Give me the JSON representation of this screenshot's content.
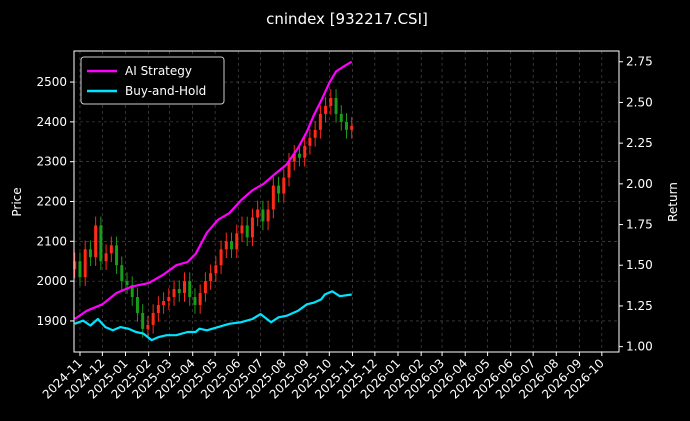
{
  "chart_data": {
    "type": "line",
    "title": "cnindex [932217.CSI]",
    "ylabel_left": "Price",
    "ylabel_right": "Return",
    "grid": true,
    "legend_position": "top-left",
    "colors": {
      "background": "#000000",
      "ai_strategy": "#ff00ff",
      "buy_and_hold": "#00e5ff",
      "candle_up": "#ff2a1a",
      "candle_down": "#1a9c1a",
      "grid": "#555555",
      "text": "#ffffff"
    },
    "x_ticks": [
      "2024-11",
      "2024-12",
      "2025-01",
      "2025-02",
      "2025-03",
      "2025-04",
      "2025-05",
      "2025-06",
      "2025-07",
      "2025-08",
      "2025-09",
      "2025-10",
      "2025-11",
      "2025-12",
      "2026-01",
      "2026-02",
      "2026-03",
      "2026-04",
      "2026-05",
      "2026-06",
      "2026-07",
      "2026-08",
      "2026-09",
      "2026-10"
    ],
    "x_range": [
      "2024-10-24",
      "2026-10-24"
    ],
    "y_left_ticks": [
      1900,
      2000,
      2100,
      2200,
      2300,
      2400,
      2500
    ],
    "y_left_range": [
      1822,
      2578
    ],
    "y_right_ticks": [
      "1.00",
      "1.25",
      "1.50",
      "1.75",
      "2.00",
      "2.25",
      "2.50",
      "2.75"
    ],
    "y_right_range": [
      0.967,
      2.816
    ],
    "price": {
      "name": "Price",
      "x": [
        "2024-10-25",
        "2024-11-01",
        "2024-11-08",
        "2024-11-15",
        "2024-11-22",
        "2024-11-29",
        "2024-12-06",
        "2024-12-13",
        "2024-12-20",
        "2024-12-27",
        "2025-01-03",
        "2025-01-10",
        "2025-01-17",
        "2025-01-24",
        "2025-01-31",
        "2025-02-07",
        "2025-02-14",
        "2025-02-21",
        "2025-02-28",
        "2025-03-07",
        "2025-03-14",
        "2025-03-21",
        "2025-03-28",
        "2025-04-04",
        "2025-04-11",
        "2025-04-18",
        "2025-04-25",
        "2025-05-02",
        "2025-05-09",
        "2025-05-16",
        "2025-05-23",
        "2025-05-30",
        "2025-06-06",
        "2025-06-13",
        "2025-06-20",
        "2025-06-27",
        "2025-07-04",
        "2025-07-11",
        "2025-07-18",
        "2025-07-25",
        "2025-08-01",
        "2025-08-08",
        "2025-08-15",
        "2025-08-22",
        "2025-08-29",
        "2025-09-05",
        "2025-09-12",
        "2025-09-19",
        "2025-09-26",
        "2025-10-03",
        "2025-10-10",
        "2025-10-17",
        "2025-10-24",
        "2025-10-31"
      ],
      "values": [
        2050,
        2010,
        2080,
        2060,
        2140,
        2050,
        2070,
        2090,
        2040,
        2000,
        1990,
        1960,
        1920,
        1880,
        1890,
        1920,
        1940,
        1950,
        1960,
        1980,
        1970,
        2000,
        1960,
        1940,
        1970,
        2000,
        2020,
        2040,
        2080,
        2100,
        2080,
        2120,
        2140,
        2110,
        2160,
        2180,
        2150,
        2180,
        2240,
        2220,
        2260,
        2300,
        2320,
        2310,
        2340,
        2360,
        2380,
        2420,
        2440,
        2460,
        2420,
        2400,
        2380,
        2390
      ]
    },
    "series": [
      {
        "name": "AI Strategy",
        "x": [
          "2024-10-25",
          "2024-11-10",
          "2024-12-01",
          "2024-12-20",
          "2025-01-10",
          "2025-02-01",
          "2025-02-20",
          "2025-03-10",
          "2025-03-25",
          "2025-04-05",
          "2025-04-20",
          "2025-05-05",
          "2025-05-20",
          "2025-06-05",
          "2025-06-20",
          "2025-07-05",
          "2025-07-20",
          "2025-08-05",
          "2025-08-20",
          "2025-09-01",
          "2025-09-10",
          "2025-09-20",
          "2025-10-01",
          "2025-10-10",
          "2025-10-20",
          "2025-10-31"
        ],
        "values": [
          1.17,
          1.22,
          1.26,
          1.33,
          1.37,
          1.39,
          1.44,
          1.5,
          1.52,
          1.57,
          1.7,
          1.78,
          1.82,
          1.9,
          1.96,
          2.0,
          2.06,
          2.12,
          2.22,
          2.32,
          2.42,
          2.51,
          2.62,
          2.69,
          2.72,
          2.75
        ]
      },
      {
        "name": "Buy-and-Hold",
        "x": [
          "2024-10-25",
          "2024-11-05",
          "2024-11-15",
          "2024-11-25",
          "2024-12-05",
          "2024-12-15",
          "2024-12-25",
          "2025-01-05",
          "2025-01-15",
          "2025-01-25",
          "2025-02-05",
          "2025-02-15",
          "2025-02-25",
          "2025-03-10",
          "2025-03-25",
          "2025-04-05",
          "2025-04-10",
          "2025-04-20",
          "2025-05-05",
          "2025-05-20",
          "2025-06-05",
          "2025-06-20",
          "2025-07-01",
          "2025-07-15",
          "2025-07-25",
          "2025-08-05",
          "2025-08-20",
          "2025-09-01",
          "2025-09-10",
          "2025-09-20",
          "2025-09-25",
          "2025-10-05",
          "2025-10-15",
          "2025-10-31"
        ],
        "values": [
          1.14,
          1.16,
          1.13,
          1.17,
          1.12,
          1.1,
          1.12,
          1.11,
          1.09,
          1.08,
          1.04,
          1.06,
          1.07,
          1.07,
          1.09,
          1.09,
          1.11,
          1.1,
          1.12,
          1.14,
          1.15,
          1.17,
          1.2,
          1.15,
          1.18,
          1.19,
          1.22,
          1.26,
          1.27,
          1.29,
          1.32,
          1.34,
          1.31,
          1.32
        ]
      }
    ]
  }
}
